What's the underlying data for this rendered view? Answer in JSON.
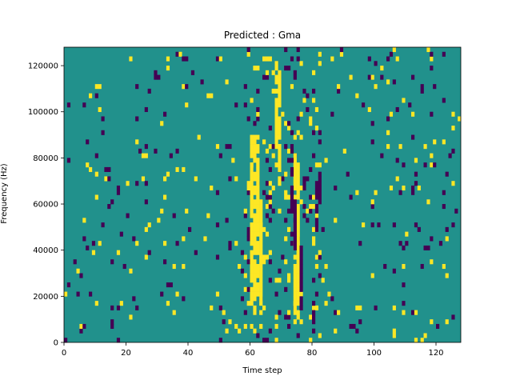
{
  "chart_data": {
    "type": "heatmap",
    "title": "Predicted : Gma",
    "xlabel": "Time step",
    "ylabel": "Frequency (Hz)",
    "xlim": [
      0,
      128
    ],
    "ylim": [
      0,
      128000
    ],
    "x_ticks": [
      0,
      20,
      40,
      60,
      80,
      100,
      120
    ],
    "x_tick_labels": [
      "0",
      "20",
      "40",
      "60",
      "80",
      "100",
      "120"
    ],
    "y_ticks": [
      0,
      20000,
      40000,
      60000,
      80000,
      100000,
      120000
    ],
    "y_tick_labels": [
      "0",
      "20000",
      "40000",
      "60000",
      "80000",
      "100000",
      "120000"
    ],
    "grid": false,
    "colormap": "viridis",
    "colors": {
      "background": "#21918c",
      "high": "#fde725",
      "low": "#440154",
      "mid_accent": "#b5de2b"
    },
    "columns": 128,
    "rows": 64,
    "dominant_value": "background",
    "cells": [
      {
        "col": 60,
        "rows": [
          8,
          44
        ],
        "value": "high"
      },
      {
        "col": 61,
        "rows": [
          5,
          44
        ],
        "value": "high"
      },
      {
        "col": 62,
        "rows": [
          10,
          44
        ],
        "value": "high"
      },
      {
        "col": 63,
        "rows": [
          6,
          30
        ],
        "value": "high"
      },
      {
        "col": 68,
        "rows": [
          42,
          60
        ],
        "value": "high"
      },
      {
        "col": 69,
        "rows": [
          34,
          58
        ],
        "value": "high"
      },
      {
        "col": 74,
        "rows": [
          6,
          40
        ],
        "value": "high"
      },
      {
        "col": 75,
        "rows": [
          5,
          38
        ],
        "value": "high"
      },
      {
        "col": 73,
        "rows": [
          28,
          42
        ],
        "value": "low"
      },
      {
        "col": 74,
        "rows": [
          20,
          30
        ],
        "value": "low"
      },
      {
        "col": 76,
        "rows": [
          6,
          20
        ],
        "value": "low"
      },
      {
        "col": 80,
        "rows": [
          2,
          8
        ],
        "value": "low"
      },
      {
        "col": 81,
        "rows": [
          24,
          34
        ],
        "value": "low"
      },
      {
        "col": 82,
        "rows": [
          30,
          34
        ],
        "value": "low"
      }
    ]
  }
}
